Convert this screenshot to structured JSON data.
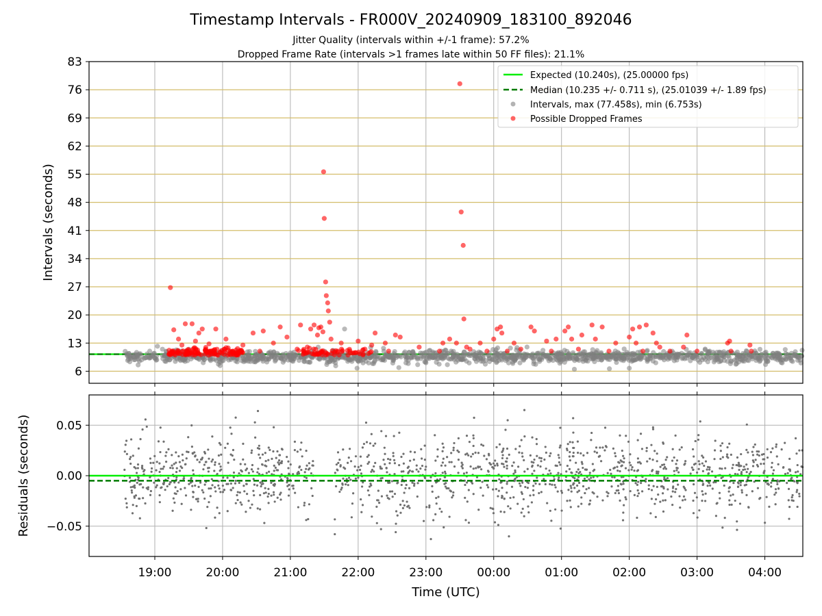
{
  "chart_data": [
    {
      "type": "scatter",
      "title": "Timestamp Intervals - FR000V_20240909_183100_892046",
      "subtitle_lines": [
        "Jitter Quality (intervals within +/-1 frame): 57.2%",
        "Dropped Frame Rate (intervals >1 frames late within 50 FF files): 21.1%"
      ],
      "ylabel": "Intervals (seconds)",
      "xlabel": "Time (UTC)",
      "x_range_hours": [
        18.03,
        28.56
      ],
      "x_ticks": [
        {
          "h": 19,
          "label": "19:00"
        },
        {
          "h": 20,
          "label": "20:00"
        },
        {
          "h": 21,
          "label": "21:00"
        },
        {
          "h": 22,
          "label": "22:00"
        },
        {
          "h": 23,
          "label": "23:00"
        },
        {
          "h": 24,
          "label": "00:00"
        },
        {
          "h": 25,
          "label": "01:00"
        },
        {
          "h": 26,
          "label": "02:00"
        },
        {
          "h": 27,
          "label": "03:00"
        },
        {
          "h": 28,
          "label": "04:00"
        }
      ],
      "ylim": [
        3,
        83
      ],
      "y_ticks": [
        "6",
        "13",
        "20",
        "27",
        "34",
        "41",
        "48",
        "55",
        "62",
        "69",
        "76",
        "83"
      ],
      "grid": true,
      "legend_position": "top-right",
      "legend": [
        {
          "label": "Expected (10.240s), (25.00000 fps)",
          "style": "line",
          "color": "#00ee00"
        },
        {
          "label": "Median (10.235 +/- 0.711 s), (25.01039 +/- 1.89 fps)",
          "style": "dashed",
          "color": "#007a00"
        },
        {
          "label": "Intervals, max (77.458s), min (6.753s)",
          "style": "marker",
          "color": "#808080"
        },
        {
          "label": "Possible Dropped Frames",
          "style": "marker",
          "color": "#ff0000"
        }
      ],
      "expected_interval": 10.24,
      "median_interval": 10.235,
      "max_interval": 77.458,
      "min_interval": 6.753,
      "observation_window_hours": [
        18.55,
        28.56
      ],
      "series": [
        {
          "name": "Possible Dropped Frames",
          "color": "#ff0000",
          "points": [
            [
              19.23,
              26.8
            ],
            [
              19.28,
              16.3
            ],
            [
              19.45,
              17.8
            ],
            [
              19.55,
              17.8
            ],
            [
              19.65,
              15.5
            ],
            [
              19.7,
              16.5
            ],
            [
              19.9,
              16.5
            ],
            [
              19.35,
              14.0
            ],
            [
              19.6,
              13.5
            ],
            [
              19.8,
              12.8
            ],
            [
              20.05,
              14.0
            ],
            [
              20.3,
              12.5
            ],
            [
              20.45,
              15.5
            ],
            [
              20.6,
              16.0
            ],
            [
              20.75,
              13.0
            ],
            [
              20.85,
              17.0
            ],
            [
              20.95,
              14.5
            ],
            [
              21.15,
              17.5
            ],
            [
              21.3,
              16.5
            ],
            [
              21.35,
              17.5
            ],
            [
              21.42,
              16.8
            ],
            [
              21.45,
              17.0
            ],
            [
              21.48,
              15.8
            ],
            [
              21.49,
              55.6
            ],
            [
              21.5,
              44.0
            ],
            [
              21.52,
              28.2
            ],
            [
              21.53,
              24.8
            ],
            [
              21.55,
              23.0
            ],
            [
              21.56,
              21.0
            ],
            [
              21.58,
              18.2
            ],
            [
              21.6,
              14.0
            ],
            [
              21.4,
              15.0
            ],
            [
              21.75,
              13.0
            ],
            [
              22.0,
              13.5
            ],
            [
              22.2,
              12.5
            ],
            [
              22.25,
              15.5
            ],
            [
              22.4,
              13.0
            ],
            [
              22.55,
              15.0
            ],
            [
              22.62,
              14.5
            ],
            [
              22.9,
              12.0
            ],
            [
              23.25,
              13.0
            ],
            [
              23.35,
              14.0
            ],
            [
              23.45,
              13.0
            ],
            [
              23.5,
              77.5
            ],
            [
              23.52,
              45.6
            ],
            [
              23.55,
              37.3
            ],
            [
              23.56,
              19.0
            ],
            [
              23.6,
              12.0
            ],
            [
              23.8,
              13.0
            ],
            [
              24.0,
              14.0
            ],
            [
              24.05,
              16.5
            ],
            [
              24.1,
              17.0
            ],
            [
              24.12,
              15.5
            ],
            [
              24.3,
              13.0
            ],
            [
              24.55,
              17.0
            ],
            [
              24.6,
              16.0
            ],
            [
              24.78,
              13.5
            ],
            [
              24.92,
              14.0
            ],
            [
              25.05,
              16.0
            ],
            [
              25.1,
              17.0
            ],
            [
              25.15,
              14.0
            ],
            [
              25.3,
              15.0
            ],
            [
              25.45,
              17.5
            ],
            [
              25.5,
              14.0
            ],
            [
              25.6,
              17.0
            ],
            [
              25.8,
              13.0
            ],
            [
              26.0,
              14.5
            ],
            [
              26.05,
              16.5
            ],
            [
              26.1,
              13.0
            ],
            [
              26.15,
              17.0
            ],
            [
              26.25,
              17.5
            ],
            [
              26.35,
              15.5
            ],
            [
              26.4,
              13.0
            ],
            [
              26.45,
              12.0
            ],
            [
              26.85,
              15.0
            ],
            [
              26.8,
              12.0
            ],
            [
              27.45,
              13.0
            ],
            [
              27.48,
              13.5
            ],
            [
              27.78,
              12.5
            ],
            [
              19.25,
              11.0
            ],
            [
              19.4,
              12.5
            ],
            [
              19.75,
              11.5
            ],
            [
              20.15,
              11.0
            ],
            [
              20.55,
              11.0
            ],
            [
              21.1,
              11.5
            ],
            [
              21.25,
              12.0
            ],
            [
              21.7,
              11.0
            ],
            [
              22.1,
              11.5
            ],
            [
              22.45,
              11.0
            ],
            [
              23.2,
              11.0
            ],
            [
              23.65,
              11.5
            ],
            [
              23.9,
              11.0
            ],
            [
              24.2,
              11.0
            ],
            [
              24.4,
              11.5
            ],
            [
              24.85,
              11.0
            ],
            [
              25.25,
              11.5
            ],
            [
              25.7,
              11.0
            ],
            [
              26.2,
              11.0
            ],
            [
              26.6,
              11.0
            ],
            [
              27.0,
              11.0
            ],
            [
              27.5,
              11.0
            ],
            [
              27.8,
              11.0
            ]
          ]
        },
        {
          "name": "Intervals",
          "color": "#808080",
          "points": [
            [
              23.5,
              9.0
            ],
            [
              26.0,
              6.75
            ],
            [
              22.6,
              6.9
            ],
            [
              21.8,
              16.5
            ]
          ]
        }
      ]
    },
    {
      "type": "scatter",
      "ylabel": "Residuals (seconds)",
      "xlabel": "Time (UTC)",
      "ylim": [
        -0.08,
        0.08
      ],
      "y_ticks": [
        {
          "v": 0.05,
          "label": "0.05"
        },
        {
          "v": 0.0,
          "label": "0.00"
        },
        {
          "v": -0.05,
          "label": "−0.05"
        }
      ],
      "expected_residual": 0.0,
      "median_residual": -0.005,
      "residual_spread": 0.02,
      "data_gap_hours": [
        21.35,
        21.65
      ],
      "grid": true
    }
  ]
}
